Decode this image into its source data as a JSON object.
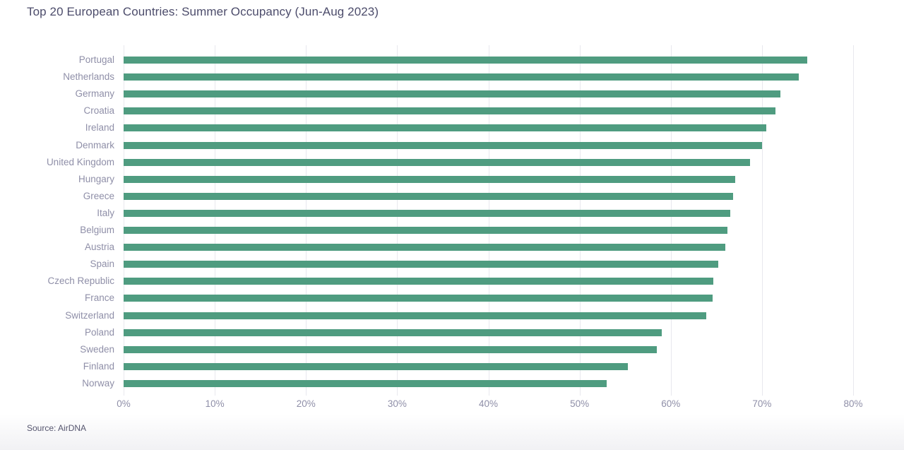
{
  "page": {
    "title": "Top 20 European Countries: Summer Occupancy (Jun-Aug 2023)",
    "source": "Source: AirDNA"
  },
  "chart_data": {
    "type": "bar",
    "orientation": "horizontal",
    "title": "Top 20 European Countries: Summer Occupancy (Jun-Aug 2023)",
    "categories": [
      "Portugal",
      "Netherlands",
      "Germany",
      "Croatia",
      "Ireland",
      "Denmark",
      "United Kingdom",
      "Hungary",
      "Greece",
      "Italy",
      "Belgium",
      "Austria",
      "Spain",
      "Czech Republic",
      "France",
      "Switzerland",
      "Poland",
      "Sweden",
      "Finland",
      "Norway"
    ],
    "values": [
      75.0,
      74.0,
      72.0,
      71.5,
      70.5,
      70.0,
      68.7,
      67.1,
      66.8,
      66.5,
      66.2,
      66.0,
      65.2,
      64.7,
      64.6,
      63.9,
      59.0,
      58.5,
      55.3,
      53.0
    ],
    "unit": "%",
    "x_ticks": [
      "0%",
      "10%",
      "20%",
      "30%",
      "40%",
      "50%",
      "60%",
      "70%",
      "80%"
    ],
    "xlim": [
      0,
      80
    ],
    "grid": true,
    "legend": "none",
    "bar_color": "#4f9c80",
    "gridline_color": "#e8e8ee",
    "label_color": "#8f8fa8",
    "title_color": "#4c4c6b",
    "source": "Source: AirDNA"
  }
}
